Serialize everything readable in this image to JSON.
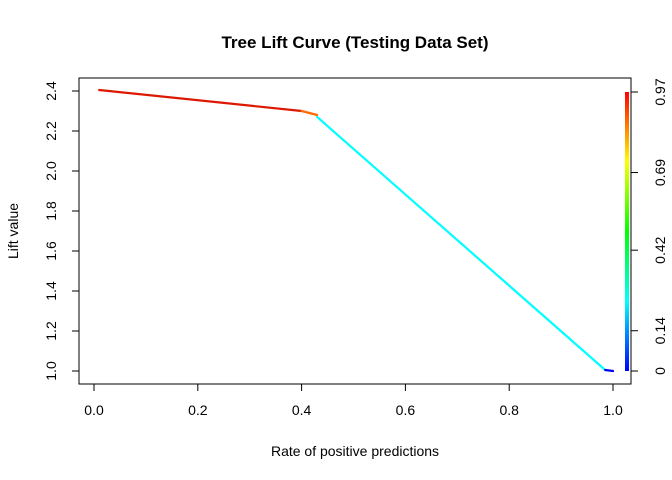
{
  "chart_data": {
    "type": "line",
    "title": "Tree Lift Curve (Testing Data Set)",
    "xlabel": "Rate of positive predictions",
    "ylabel": "Lift value",
    "xlim": [
      0.0,
      1.0
    ],
    "ylim": [
      1.0,
      2.4
    ],
    "x_ticks": [
      "0.0",
      "0.2",
      "0.4",
      "0.6",
      "0.8",
      "1.0"
    ],
    "y_ticks": [
      "1.0",
      "1.2",
      "1.4",
      "1.6",
      "1.8",
      "2.0",
      "2.2",
      "2.4"
    ],
    "colorbar": {
      "range": [
        0.0,
        0.97
      ],
      "ticks": [
        "0",
        "0.14",
        "0.42",
        "0.69",
        "0.97"
      ],
      "colormap": [
        "#0000ff",
        "#00ffff",
        "#00ff00",
        "#ffff00",
        "#ff0000"
      ]
    },
    "segments": [
      {
        "x": [
          0.01,
          0.4
        ],
        "y": [
          2.405,
          2.3
        ],
        "cutoff": [
          0.97,
          0.97
        ],
        "color": "#dd1800"
      },
      {
        "x": [
          0.4,
          0.43
        ],
        "y": [
          2.3,
          2.28
        ],
        "cutoff": [
          0.9,
          0.88
        ],
        "color": "#ff6a00"
      },
      {
        "x": [
          0.43,
          0.985
        ],
        "y": [
          2.27,
          1.005
        ],
        "cutoff": [
          0.14,
          0.14
        ],
        "color": "#00ffff"
      },
      {
        "x": [
          0.985,
          1.0
        ],
        "y": [
          1.005,
          1.0
        ],
        "cutoff": [
          0.0,
          0.0
        ],
        "color": "#0000ee"
      }
    ],
    "grid": false,
    "legend": "right-colorbar"
  }
}
